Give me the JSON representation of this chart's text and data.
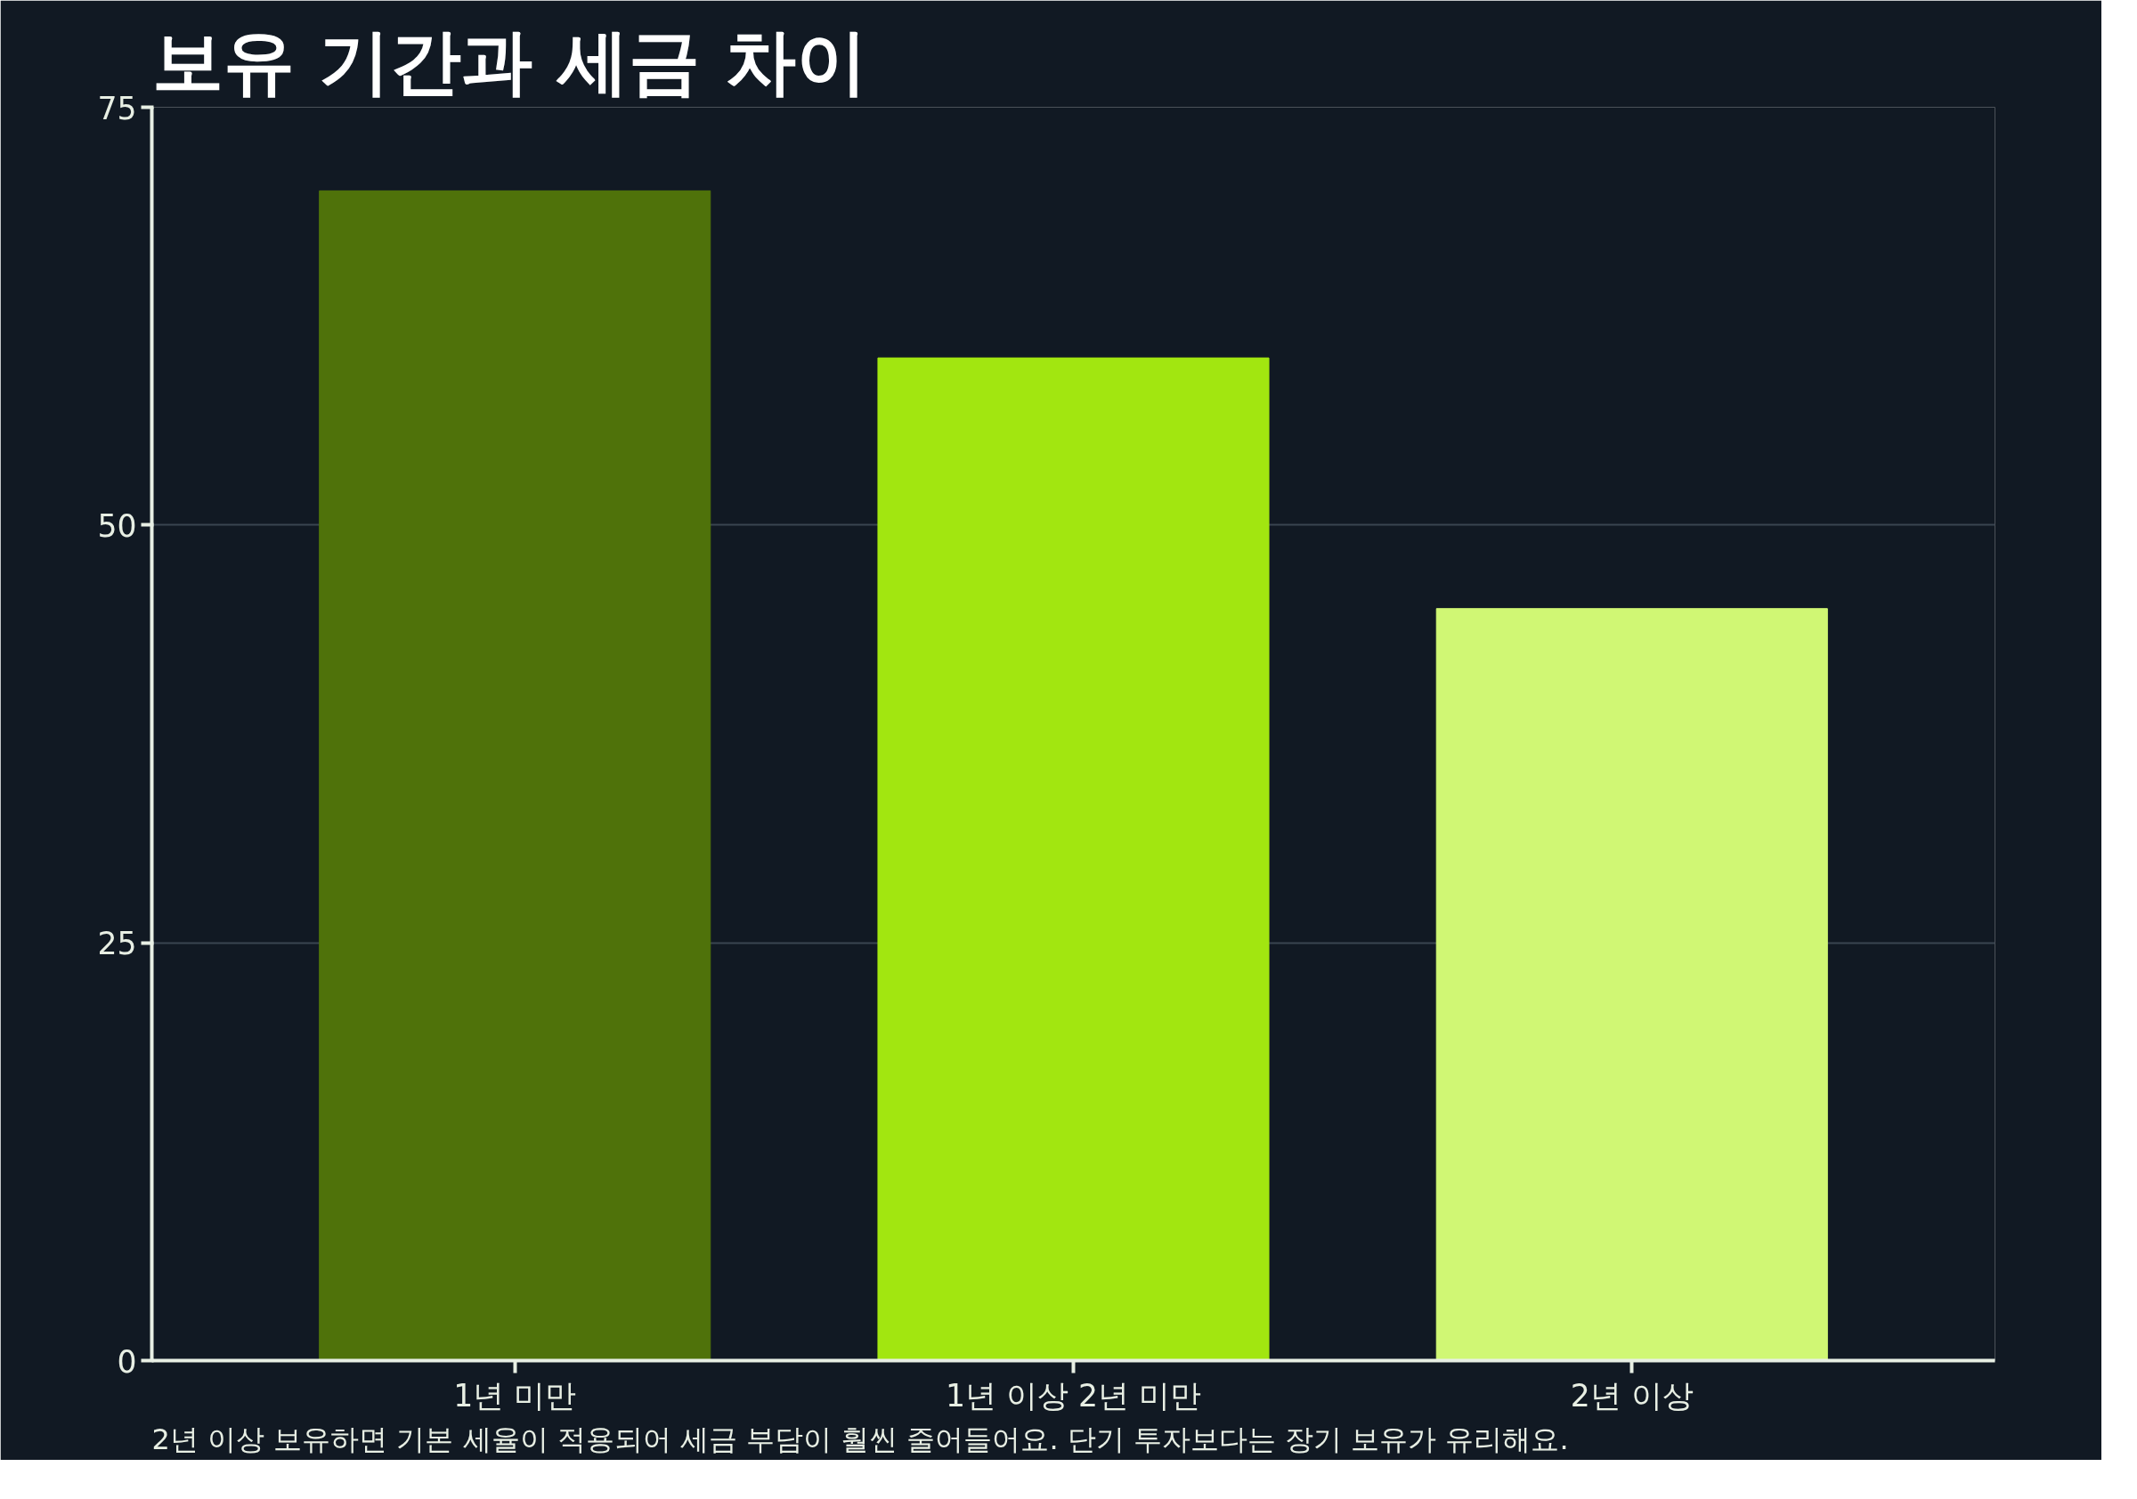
{
  "chart_data": {
    "type": "bar",
    "title": "보유 기간과 세금 차이",
    "categories": [
      "1년 미만",
      "1년 이상 2년 미만",
      "2년 이상"
    ],
    "values": [
      70,
      60,
      45
    ],
    "colors": [
      "#4f720a",
      "#a2e610",
      "#d0f774"
    ],
    "ylim": [
      0,
      75
    ],
    "yticks": [
      0,
      25,
      50,
      75
    ],
    "grid": "y",
    "annotations": [
      "2년 이상 보유하면 기본 세율이 적용되어 세금 부담이 훨씬 줄어들어요. 단기 투자보다는 장기 보유가 유리해요."
    ]
  }
}
